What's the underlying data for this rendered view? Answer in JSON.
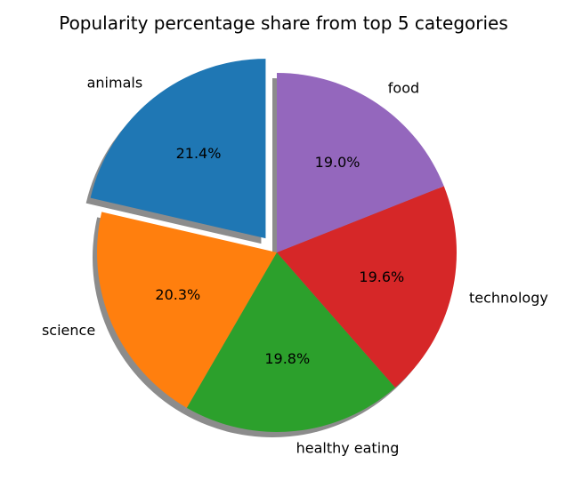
{
  "chart_data": {
    "type": "pie",
    "title": "Popularity percentage share from top 5 categories",
    "startangle_deg": 90,
    "direction": "counterclockwise",
    "shadow": true,
    "slices": [
      {
        "label": "animals",
        "value": 21.4,
        "pct_label": "21.4%",
        "color": "#1f77b4",
        "explode": 0.1
      },
      {
        "label": "science",
        "value": 20.3,
        "pct_label": "20.3%",
        "color": "#ff7f0e",
        "explode": 0
      },
      {
        "label": "healthy eating",
        "value": 19.8,
        "pct_label": "19.8%",
        "color": "#2ca02c",
        "explode": 0
      },
      {
        "label": "technology",
        "value": 19.6,
        "pct_label": "19.6%",
        "color": "#d62728",
        "explode": 0
      },
      {
        "label": "food",
        "value": 19.0,
        "pct_label": "19.0%",
        "color": "#9467bd",
        "explode": 0
      }
    ]
  }
}
